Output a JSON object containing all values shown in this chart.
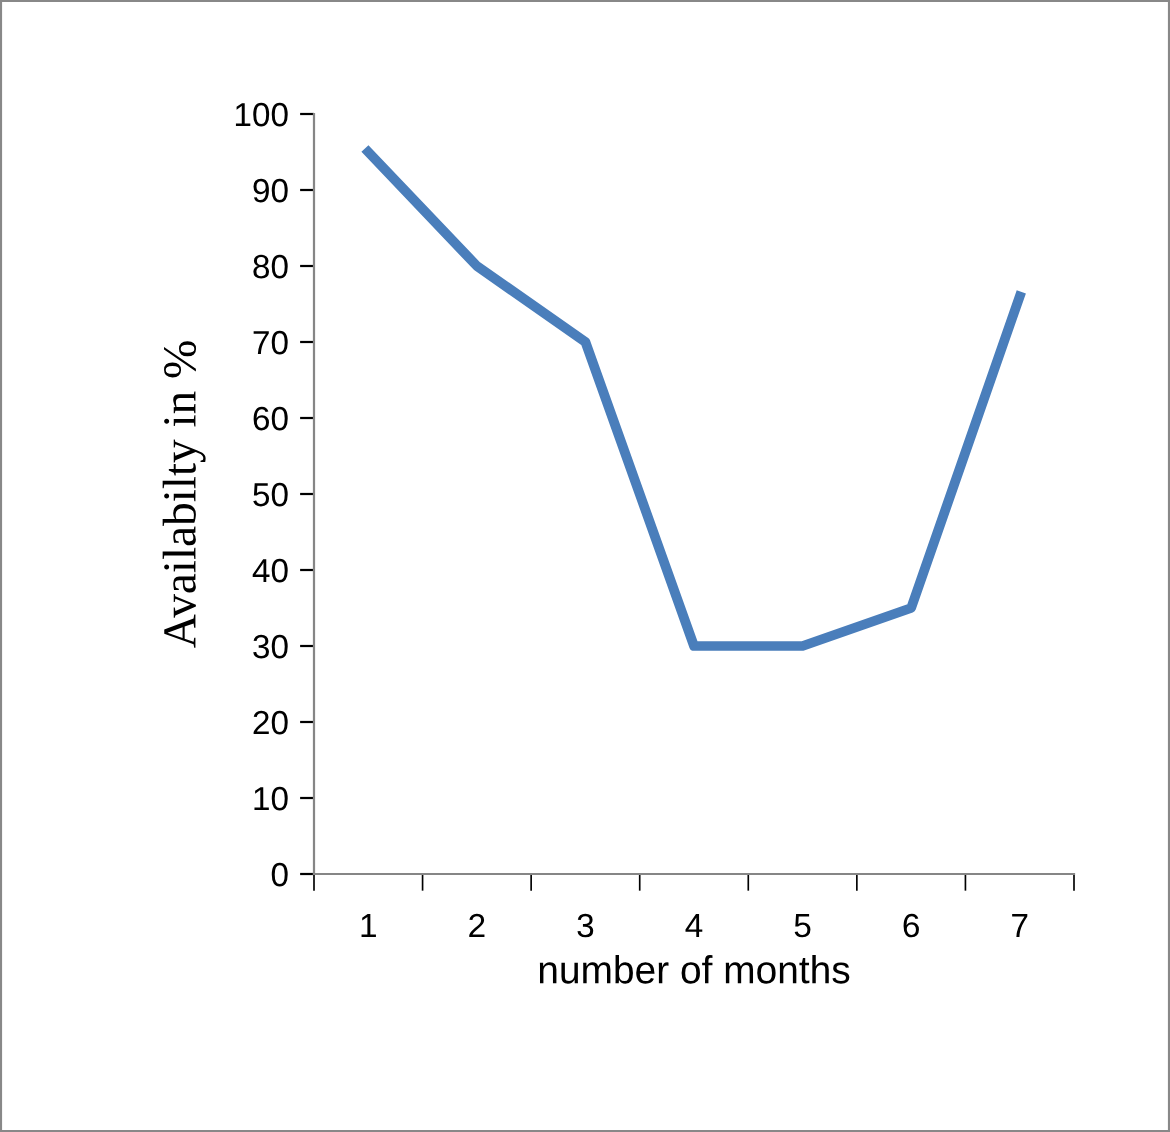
{
  "chart_data": {
    "type": "line",
    "xlabel": "number of months",
    "ylabel": "Availabilty in %",
    "categories": [
      "1",
      "2",
      "3",
      "4",
      "5",
      "6",
      "7"
    ],
    "series": [
      {
        "color": "#4a7ebb",
        "values": [
          95,
          80,
          70,
          30,
          30,
          35,
          76
        ]
      }
    ],
    "ylim": [
      0,
      100
    ],
    "yticks": [
      0,
      10,
      20,
      30,
      40,
      50,
      60,
      70,
      80,
      90,
      100
    ],
    "grid": false,
    "legend": false,
    "marker": "none",
    "line_style": "solid"
  }
}
